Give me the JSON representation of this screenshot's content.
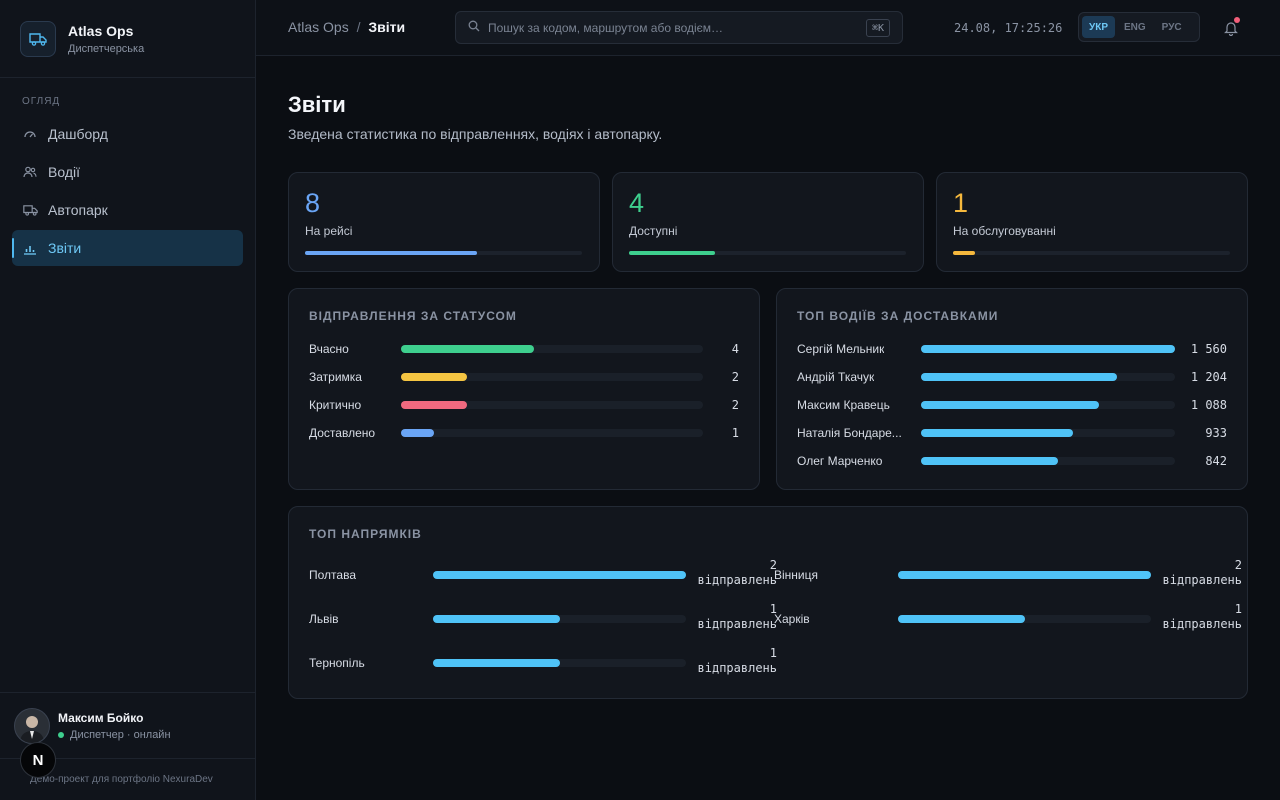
{
  "brand": {
    "name": "Atlas Ops",
    "subtitle": "Диспетчерська"
  },
  "sidebar": {
    "section": "ОГЛЯД",
    "items": [
      {
        "label": "Дашборд",
        "icon": "gauge-icon",
        "active": false
      },
      {
        "label": "Водії",
        "icon": "users-icon",
        "active": false
      },
      {
        "label": "Автопарк",
        "icon": "truck-icon",
        "active": false
      },
      {
        "label": "Звіти",
        "icon": "bar-chart-icon",
        "active": true
      }
    ],
    "user": {
      "name": "Максим Бойко",
      "role": "Диспетчер · онлайн"
    },
    "footer": "Демо-проект для портфоліо NexuraDev",
    "badge": "N"
  },
  "header": {
    "breadcrumb": {
      "root": "Atlas Ops",
      "separator": "/",
      "current": "Звіти"
    },
    "search": {
      "placeholder": "Пошук за кодом, маршрутом або водієм…",
      "shortcut": "⌘K"
    },
    "clock": "24.08, 17:25:26",
    "languages": [
      {
        "label": "УКР",
        "active": true
      },
      {
        "label": "ENG",
        "active": false
      },
      {
        "label": "РУС",
        "active": false
      }
    ]
  },
  "page": {
    "title": "Звіти",
    "subtitle": "Зведена статистика по відправленнях, водіях і автопарку."
  },
  "kpis": [
    {
      "value": "8",
      "label": "На рейсі",
      "color": "#6aa5f5",
      "fraction": 0.62
    },
    {
      "value": "4",
      "label": "Доступні",
      "color": "#3ecf8e",
      "fraction": 0.31
    },
    {
      "value": "1",
      "label": "На обслуговуванні",
      "color": "#f5b83d",
      "fraction": 0.08
    }
  ],
  "status_panel": {
    "title": "ВІДПРАВЛЕННЯ ЗА СТАТУСОМ",
    "rows": [
      {
        "label": "Вчасно",
        "value": "4",
        "fraction": 0.44,
        "color": "#3ecf8e"
      },
      {
        "label": "Затримка",
        "value": "2",
        "fraction": 0.22,
        "color": "#f5c542"
      },
      {
        "label": "Критично",
        "value": "2",
        "fraction": 0.22,
        "color": "#f0697f"
      },
      {
        "label": "Доставлено",
        "value": "1",
        "fraction": 0.11,
        "color": "#6aa5f5"
      }
    ]
  },
  "drivers_panel": {
    "title": "ТОП ВОДІЇВ ЗА ДОСТАВКАМИ",
    "rows": [
      {
        "label": "Сергій Мельник",
        "value": "1 560",
        "fraction": 1.0
      },
      {
        "label": "Андрій Ткачук",
        "value": "1 204",
        "fraction": 0.77
      },
      {
        "label": "Максим Кравець",
        "value": "1 088",
        "fraction": 0.7
      },
      {
        "label": "Наталія Бондаре...",
        "value": "933",
        "fraction": 0.6
      },
      {
        "label": "Олег Марченко",
        "value": "842",
        "fraction": 0.54
      }
    ]
  },
  "routes_panel": {
    "title": "ТОП НАПРЯМКІВ",
    "unit": "відправлень",
    "rows": [
      {
        "label": "Полтава",
        "value": "2",
        "fraction": 1.0
      },
      {
        "label": "Вінниця",
        "value": "2",
        "fraction": 1.0
      },
      {
        "label": "Львів",
        "value": "1",
        "fraction": 0.5
      },
      {
        "label": "Харків",
        "value": "1",
        "fraction": 0.5
      },
      {
        "label": "Тернопіль",
        "value": "1",
        "fraction": 0.5
      }
    ]
  },
  "colors": {
    "accent": "#4fb8ef",
    "bar_blue": "#4fc3f7"
  }
}
